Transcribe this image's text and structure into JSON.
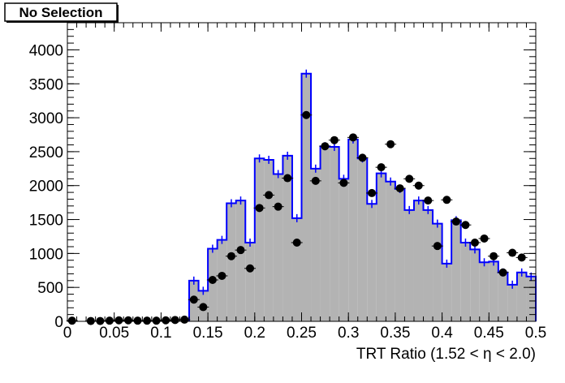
{
  "stats_box": {
    "label": "No Selection"
  },
  "colors": {
    "mc_line": "#0000ff",
    "mc_fill": "#b3b3b3",
    "data_marker": "#000000",
    "frame": "#000000"
  },
  "chart_data": {
    "type": "histogram",
    "xlabel": "TRT Ratio (1.52 <  η < 2.0)",
    "ylabel": "",
    "title": "",
    "xlim": [
      0,
      0.5
    ],
    "ylim": [
      0,
      4400
    ],
    "grid": false,
    "x_ticks": [
      0,
      0.05,
      0.1,
      0.15,
      0.2,
      0.25,
      0.3,
      0.35,
      0.4,
      0.45,
      0.5
    ],
    "x_tick_labels": [
      "0",
      "0.05",
      "0.1",
      "0.15",
      "0.2",
      "0.25",
      "0.3",
      "0.35",
      "0.4",
      "0.45",
      "0.5"
    ],
    "y_ticks": [
      0,
      500,
      1000,
      1500,
      2000,
      2500,
      3000,
      3500,
      4000
    ],
    "y_tick_labels": [
      "0",
      "500",
      "1000",
      "1500",
      "2000",
      "2500",
      "3000",
      "3500",
      "4000"
    ],
    "bin_width": 0.01,
    "series": [
      {
        "kind": "histogram",
        "bin_start": 0.13,
        "values": [
          600,
          450,
          1070,
          1200,
          1740,
          1780,
          1160,
          2400,
          2380,
          2170,
          2440,
          1520,
          3650,
          2250,
          2580,
          2570,
          2100,
          2680,
          2400,
          1730,
          2180,
          2060,
          1950,
          1640,
          1780,
          1640,
          1440,
          850,
          1490,
          1160,
          1060,
          870,
          880,
          720,
          540,
          720,
          660
        ]
      },
      {
        "kind": "points",
        "x": [
          0.005,
          0.025,
          0.035,
          0.045,
          0.055,
          0.065,
          0.075,
          0.085,
          0.095,
          0.105,
          0.115,
          0.125,
          0.135,
          0.145,
          0.155,
          0.165,
          0.175,
          0.185,
          0.195,
          0.205,
          0.215,
          0.225,
          0.235,
          0.245,
          0.255,
          0.265,
          0.275,
          0.285,
          0.295,
          0.305,
          0.315,
          0.325,
          0.335,
          0.345,
          0.355,
          0.365,
          0.375,
          0.385,
          0.395,
          0.405,
          0.415,
          0.425,
          0.435,
          0.445,
          0.455,
          0.465,
          0.475,
          0.485
        ],
        "values": [
          10,
          5,
          5,
          10,
          15,
          15,
          10,
          10,
          10,
          15,
          20,
          25,
          320,
          210,
          610,
          670,
          960,
          1050,
          780,
          1670,
          1860,
          1690,
          2110,
          1160,
          3040,
          2070,
          2580,
          2670,
          2040,
          2710,
          2410,
          1890,
          2270,
          2610,
          1960,
          2100,
          2000,
          1780,
          1110,
          1790,
          1470,
          1420,
          1160,
          1220,
          960,
          720,
          1010,
          940
        ]
      }
    ]
  }
}
